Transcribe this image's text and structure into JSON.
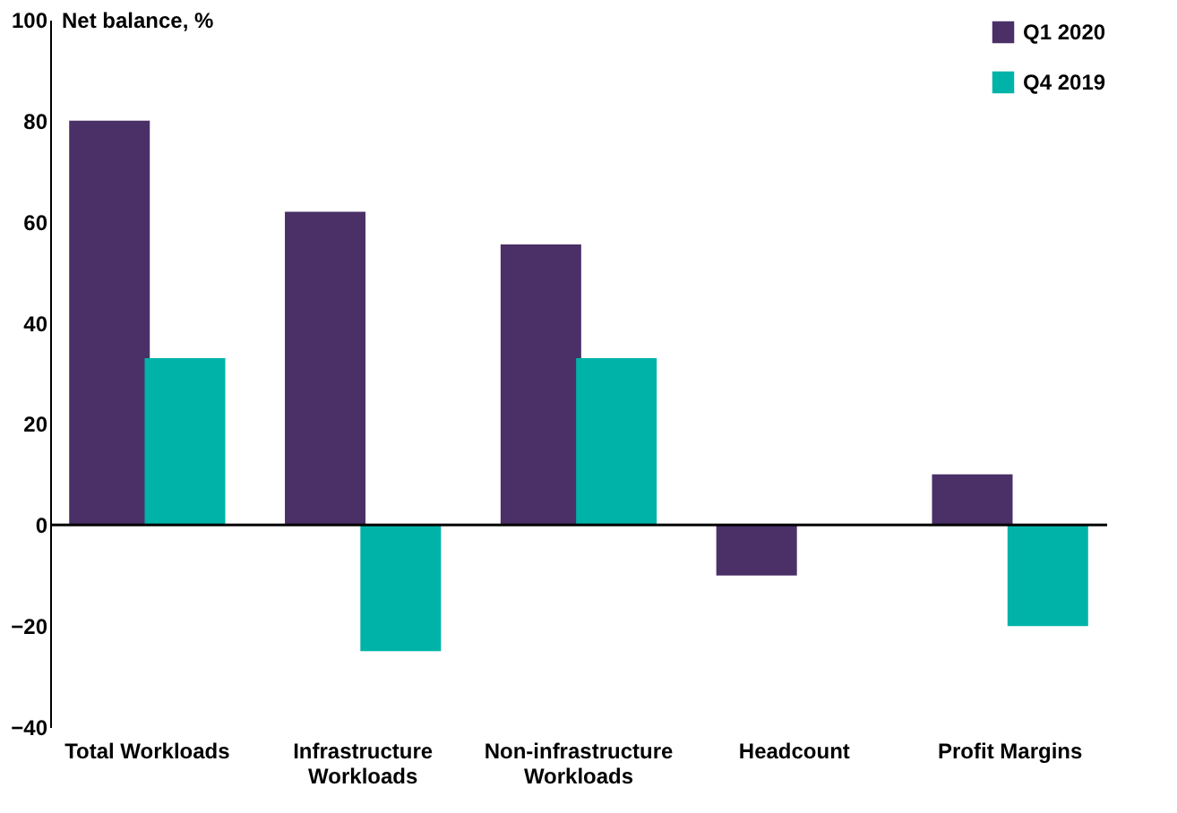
{
  "chart_data": {
    "type": "bar",
    "ylabel": "Net balance, %",
    "categories": [
      "Total Workloads",
      "Infrastructure Workloads",
      "Non-infrastructure Workloads",
      "Headcount",
      "Profit Margins"
    ],
    "series": [
      {
        "name": "Q1 2020",
        "color": "#4b3068",
        "values": [
          80,
          62,
          55.5,
          -10,
          10
        ]
      },
      {
        "name": "Q4 2019",
        "color": "#00b3a8",
        "values": [
          33,
          -25,
          33,
          0,
          -20
        ]
      }
    ],
    "ylim": [
      -40,
      100
    ],
    "yticks": [
      -40,
      -20,
      0,
      20,
      40,
      60,
      80,
      100
    ],
    "grid": false,
    "legend": "top right",
    "ref_lines": [
      {
        "axis": "y",
        "value": 0,
        "color": "#000000"
      }
    ]
  }
}
